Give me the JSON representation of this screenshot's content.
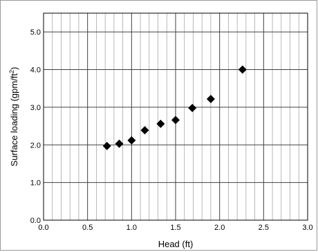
{
  "chart_data": {
    "type": "scatter",
    "xlabel": "Head (ft)",
    "ylabel_main": "Surface loading (gpm/ft",
    "ylabel_sup": "2",
    "ylabel_end": ")",
    "xlim": [
      0.0,
      3.0
    ],
    "ylim": [
      0.0,
      5.5
    ],
    "x_ticks": [
      "0.0",
      "0.5",
      "1.0",
      "1.5",
      "2.0",
      "2.5",
      "3.0"
    ],
    "x_tick_values": [
      0.0,
      0.5,
      1.0,
      1.5,
      2.0,
      2.5,
      3.0
    ],
    "y_ticks": [
      "0.0",
      "1.0",
      "2.0",
      "3.0",
      "4.0",
      "5.0"
    ],
    "y_tick_values": [
      0.0,
      1.0,
      2.0,
      3.0,
      4.0,
      5.0
    ],
    "x_minor_step": 0.1,
    "grid": true,
    "marker": "diamond",
    "marker_color": "#000000",
    "points": [
      {
        "x": 0.72,
        "y": 1.97
      },
      {
        "x": 0.86,
        "y": 2.03
      },
      {
        "x": 1.0,
        "y": 2.12
      },
      {
        "x": 1.15,
        "y": 2.39
      },
      {
        "x": 1.33,
        "y": 2.56
      },
      {
        "x": 1.5,
        "y": 2.66
      },
      {
        "x": 1.69,
        "y": 2.98
      },
      {
        "x": 1.9,
        "y": 3.22
      },
      {
        "x": 2.26,
        "y": 4.0
      }
    ]
  }
}
